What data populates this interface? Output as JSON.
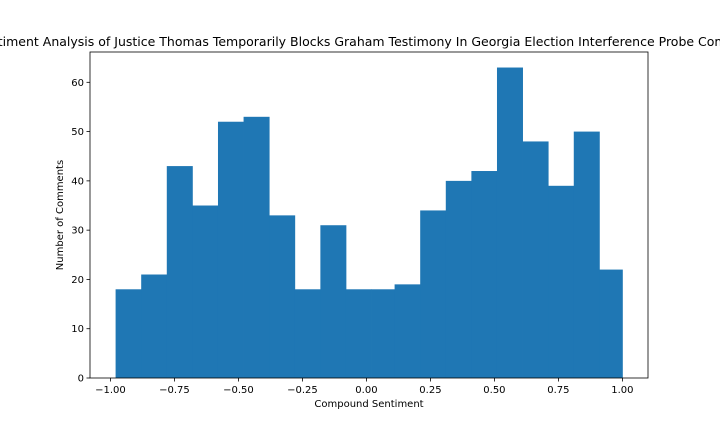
{
  "chart_data": {
    "type": "bar",
    "title": "Sentiment Analysis of Justice Thomas Temporarily Blocks Graham Testimony In Georgia Election Interference Probe Comments",
    "xlabel": "Compound Sentiment",
    "ylabel": "Number of Comments",
    "bin_edges": [
      -0.98,
      -0.88,
      -0.78,
      -0.68,
      -0.58,
      -0.48,
      -0.38,
      -0.28,
      -0.18,
      -0.08,
      0.02,
      0.11,
      0.21,
      0.31,
      0.41,
      0.51,
      0.61,
      0.71,
      0.81,
      0.91,
      1.0
    ],
    "values": [
      18,
      21,
      43,
      35,
      52,
      53,
      33,
      18,
      31,
      18,
      18,
      19,
      34,
      40,
      42,
      63,
      48,
      39,
      50,
      22
    ],
    "xlim": [
      -1.08,
      1.1
    ],
    "ylim": [
      0,
      66.15
    ],
    "xticks": [
      -1.0,
      -0.75,
      -0.5,
      -0.25,
      0.0,
      0.25,
      0.5,
      0.75,
      1.0
    ],
    "xtick_labels": [
      "−1.00",
      "−0.75",
      "−0.50",
      "−0.25",
      "0.00",
      "0.25",
      "0.50",
      "0.75",
      "1.00"
    ],
    "yticks": [
      0,
      10,
      20,
      30,
      40,
      50,
      60
    ],
    "ytick_labels": [
      "0",
      "10",
      "20",
      "30",
      "40",
      "50",
      "60"
    ],
    "bar_color": "#1f77b4",
    "grid": false,
    "legend": "none"
  }
}
